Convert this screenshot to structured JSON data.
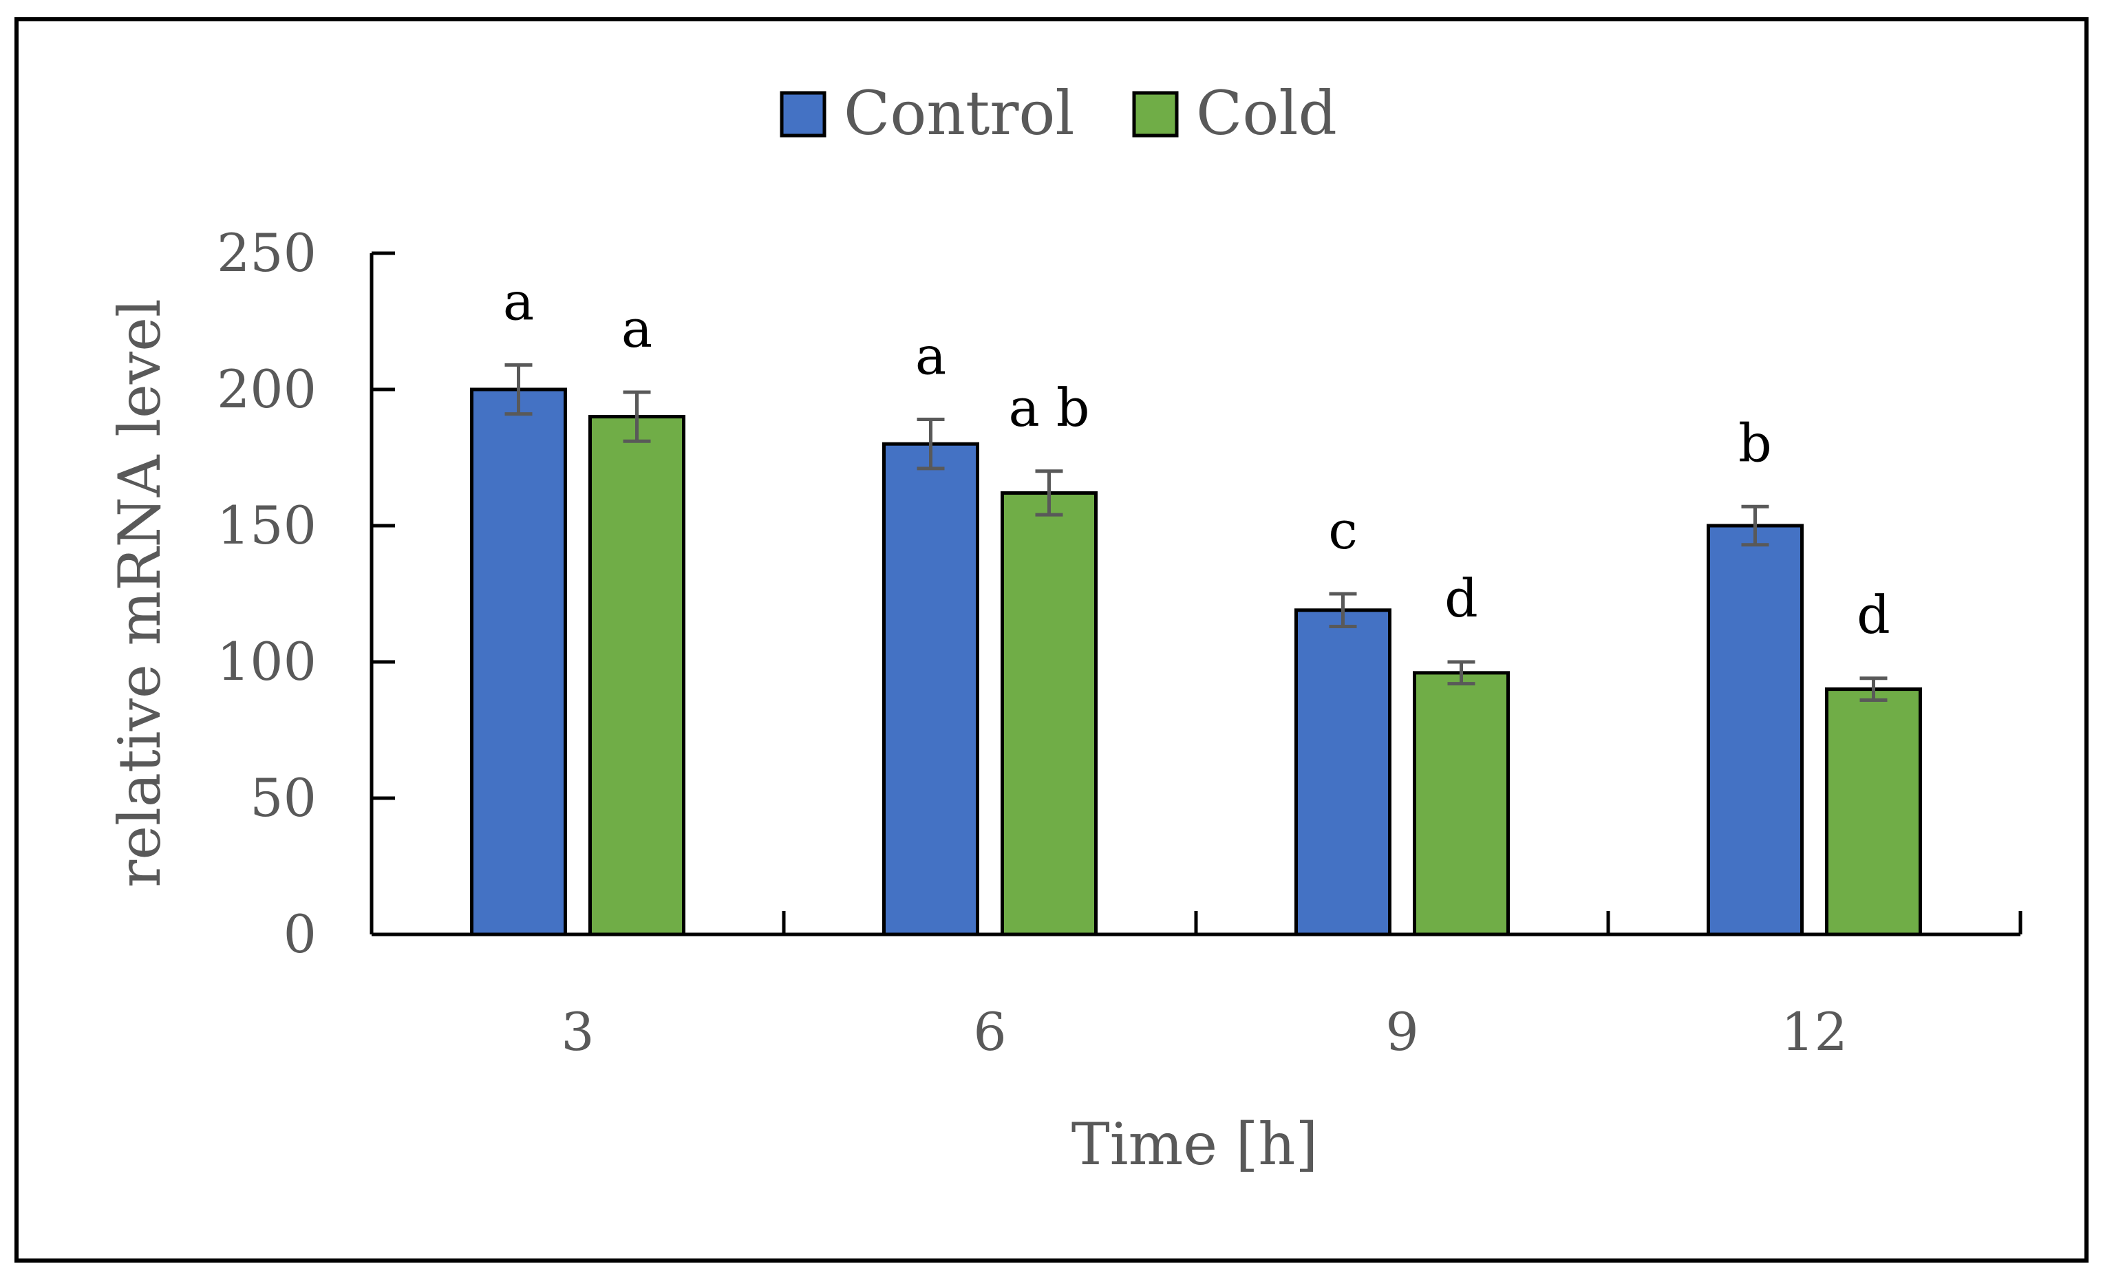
{
  "chart_data": {
    "type": "bar",
    "title": "",
    "xlabel": "Time [h]",
    "ylabel": "relative mRNA level",
    "categories": [
      "3",
      "6",
      "9",
      "12"
    ],
    "ylim": [
      0,
      250
    ],
    "yticks": [
      0,
      50,
      100,
      150,
      200,
      250
    ],
    "grid": false,
    "legend": {
      "position": "top-center"
    },
    "series": [
      {
        "name": "Control",
        "color": "#4472C4",
        "values": [
          200,
          180,
          119,
          150
        ],
        "errors": [
          9,
          9,
          6,
          7
        ],
        "significance": [
          "a",
          "a",
          "c",
          "b"
        ]
      },
      {
        "name": "Cold",
        "color": "#70AD47",
        "values": [
          190,
          162,
          96,
          90
        ],
        "errors": [
          9,
          8,
          4,
          4
        ],
        "significance": [
          "a",
          "a b",
          "d",
          "d"
        ]
      }
    ]
  }
}
